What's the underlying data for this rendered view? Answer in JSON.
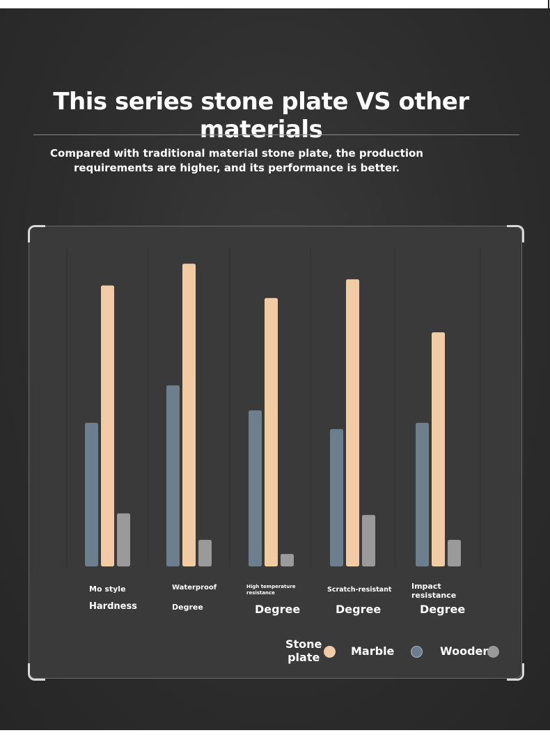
{
  "header": {
    "title": "This series stone plate VS other materials",
    "subtitle_line1": "Compared with traditional material stone plate, the production",
    "subtitle_line2": "requirements are higher, and its performance is better."
  },
  "chart_data": {
    "type": "bar",
    "categories": [
      {
        "top": "Mo style",
        "bottom": "Hardness"
      },
      {
        "top": "Waterproof",
        "bottom": "Degree"
      },
      {
        "top": "High temperature resistance",
        "bottom": "Degree"
      },
      {
        "top": "Scratch-resistant",
        "bottom": "Degree"
      },
      {
        "top": "Impact resistance",
        "bottom": "Degree"
      }
    ],
    "series": [
      {
        "name": "Marble",
        "color": "#6b7f8e",
        "values": [
          46,
          58,
          50,
          44,
          46
        ]
      },
      {
        "name": "Stone plate",
        "color": "#f0cba4",
        "values": [
          90,
          97,
          86,
          92,
          75
        ]
      },
      {
        "name": "Wooden",
        "color": "#9a9a9a",
        "values": [
          17,
          8.5,
          4,
          16.5,
          8.5
        ]
      }
    ],
    "ylim": [
      0,
      100
    ],
    "grid": false,
    "legend_placement": "bottom-right",
    "legend": {
      "stone_line1": "Stone",
      "stone_line2": "plate",
      "marble": "Marble",
      "wooden": "Wooden"
    }
  }
}
